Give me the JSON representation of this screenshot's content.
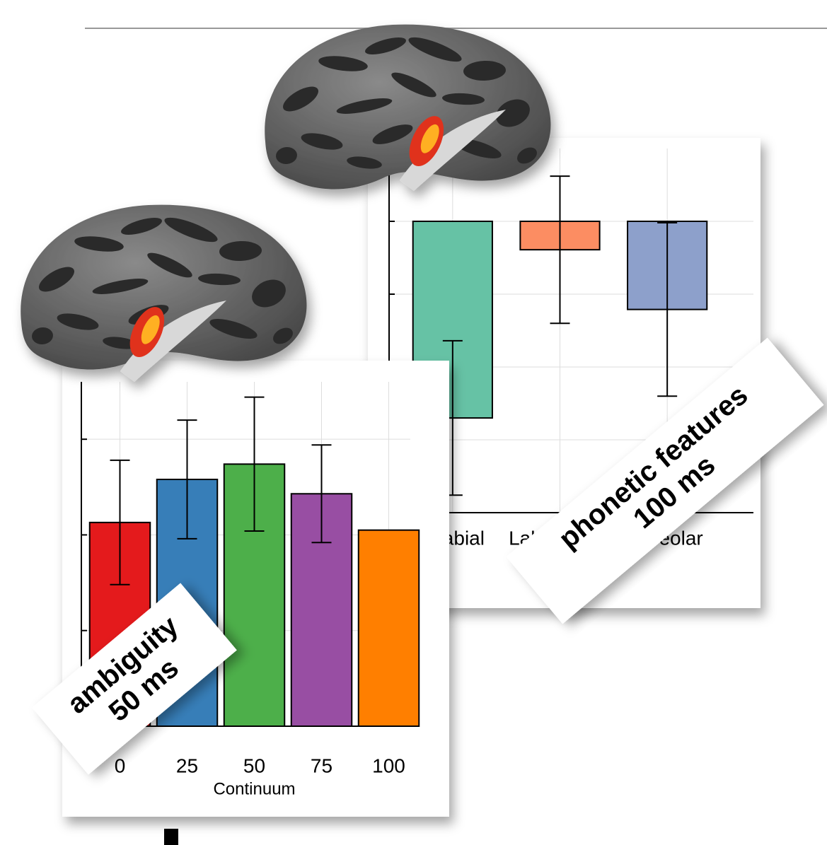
{
  "chart_data": [
    {
      "type": "bar",
      "categories": [
        "Bilabial",
        "Labiodental",
        "Alveolar"
      ],
      "values": [
        -2.7,
        -0.39,
        -1.21
      ],
      "errors": [
        1.06,
        1.01,
        1.19
      ],
      "colors": [
        "#66c2a5",
        "#fc8d62",
        "#8da0cb"
      ],
      "ylim": [
        -4,
        1
      ],
      "yticks": [
        -3,
        -2,
        -1,
        0
      ],
      "grid": true,
      "annotations": [
        "phonetic features",
        "100 ms"
      ]
    },
    {
      "type": "bar",
      "categories": [
        "0",
        "25",
        "50",
        "75",
        "100"
      ],
      "x_label": "Continuum",
      "values": [
        2.13,
        2.58,
        2.74,
        2.43,
        2.05
      ],
      "errors": [
        0.65,
        0.62,
        0.7,
        0.51,
        null
      ],
      "colors": [
        "#e41a1c",
        "#377eb8",
        "#4daf4a",
        "#984ea3",
        "#ff7f00"
      ],
      "ylim": [
        0,
        3.6
      ],
      "yticks": [
        0,
        1,
        2,
        3
      ],
      "grid": true,
      "annotations": [
        "ambiguity",
        "50 ms"
      ]
    }
  ]
}
